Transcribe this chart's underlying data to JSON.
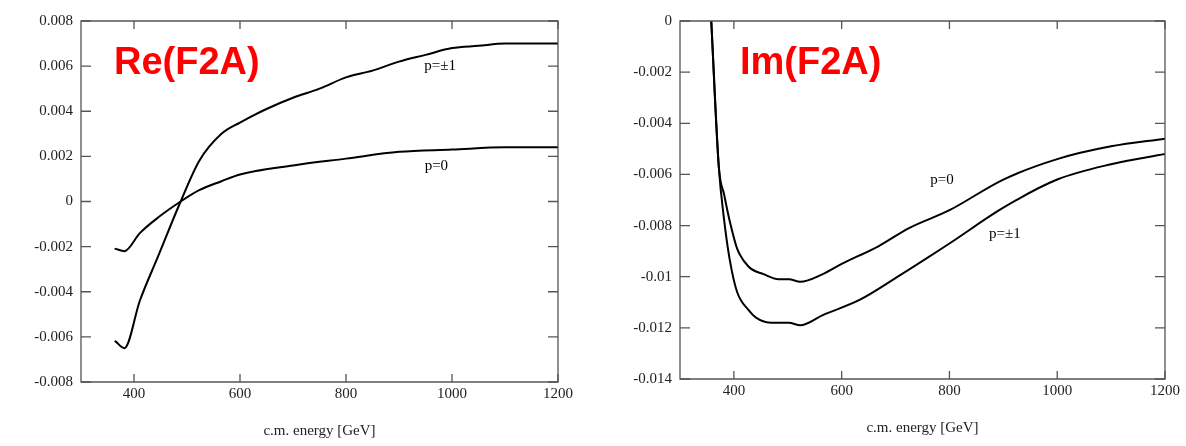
{
  "chart_data": [
    {
      "type": "line",
      "title": "Re(F2A)",
      "xlabel": "c.m. energy [GeV]",
      "xlim": [
        300,
        1200
      ],
      "xticks": [
        400,
        600,
        800,
        1000,
        1200
      ],
      "ylim": [
        -0.008,
        0.008
      ],
      "yticks": [
        -0.008,
        -0.006,
        -0.004,
        -0.002,
        0,
        0.002,
        0.004,
        0.006,
        0.008
      ],
      "marker": "none",
      "line_style": "solid",
      "series": [
        {
          "name": "p=±1",
          "color": "#000000",
          "x": [
            365,
            382,
            411,
            446,
            488,
            523,
            565,
            600,
            650,
            700,
            750,
            800,
            850,
            900,
            950,
            1000,
            1050,
            1100,
            1150,
            1200
          ],
          "values": [
            -0.0062,
            -0.0065,
            -0.0044,
            -0.0024,
            0,
            0.0018,
            0.003,
            0.0035,
            0.0041,
            0.0046,
            0.005,
            0.0055,
            0.0058,
            0.0062,
            0.0065,
            0.0068,
            0.0069,
            0.007,
            0.007,
            0.007
          ]
        },
        {
          "name": "p=0",
          "color": "#000000",
          "x": [
            365,
            382,
            411,
            446,
            488,
            523,
            565,
            600,
            700,
            800,
            900,
            1000,
            1100,
            1200
          ],
          "values": [
            -0.0021,
            -0.0022,
            -0.0014,
            -0.0007,
            0,
            0.0005,
            0.0009,
            0.0012,
            0.0016,
            0.0019,
            0.0022,
            0.0023,
            0.0024,
            0.0024
          ]
        }
      ]
    },
    {
      "type": "line",
      "title": "Im(F2A)",
      "xlabel": "c.m. energy [GeV]",
      "xlim": [
        300,
        1200
      ],
      "xticks": [
        400,
        600,
        800,
        1000,
        1200
      ],
      "ylim": [
        -0.014,
        0
      ],
      "yticks": [
        -0.014,
        -0.012,
        -0.01,
        -0.008,
        -0.006,
        -0.004,
        -0.002,
        0
      ],
      "marker": "none",
      "line_style": "solid",
      "series": [
        {
          "name": "p=0",
          "color": "#000000",
          "x": [
            358,
            372,
            382,
            392,
            406,
            427,
            455,
            483,
            502,
            523,
            565,
            600,
            669,
            725,
            800,
            900,
            1000,
            1100,
            1200
          ],
          "values": [
            0,
            -0.0057,
            -0.0068,
            -0.0078,
            -0.0089,
            -0.0096,
            -0.0099,
            -0.0101,
            -0.0101,
            -0.0102,
            -0.0099,
            -0.0095,
            -0.0088,
            -0.0081,
            -0.0074,
            -0.0062,
            -0.0054,
            -0.0049,
            -0.0046
          ]
        },
        {
          "name": "p=±1",
          "color": "#000000",
          "x": [
            358,
            372,
            382,
            392,
            406,
            427,
            441,
            469,
            502,
            523,
            565,
            634,
            704,
            800,
            900,
            1000,
            1100,
            1200
          ],
          "values": [
            0,
            -0.0057,
            -0.0078,
            -0.0093,
            -0.0106,
            -0.0113,
            -0.0116,
            -0.0118,
            -0.0118,
            -0.0119,
            -0.0115,
            -0.0109,
            -0.01,
            -0.0087,
            -0.0073,
            -0.0062,
            -0.0056,
            -0.0052
          ]
        }
      ]
    }
  ]
}
